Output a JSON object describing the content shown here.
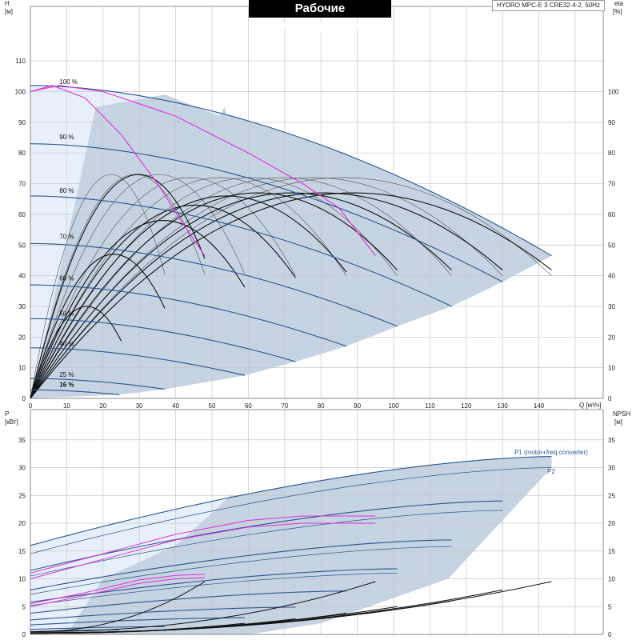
{
  "header": {
    "title": "Рабочие характеристики",
    "model": "HYDRO MPC-E 3 CRE32-4-2, 50Hz"
  },
  "colors": {
    "grid": "#c8c8c8",
    "region_dark": "#c5d3e2",
    "region_light": "#e7f0fa",
    "blue_curve": "#2a5690",
    "magenta_curve": "#e030d8",
    "black_curve": "#111111",
    "thin_curve": "#555555"
  },
  "chart_data": [
    {
      "type": "line",
      "name": "head-chart",
      "ylabel_left": "H",
      "ylabel_left_unit": "[м]",
      "ylabel_right": "eta",
      "ylabel_right_unit": "[%]",
      "xlabel": "Q [м³/ч]",
      "xlim": [
        0,
        150
      ],
      "ylim": [
        0,
        120
      ],
      "xticks": [
        0,
        10,
        20,
        30,
        40,
        50,
        60,
        70,
        80,
        90,
        100,
        110,
        120,
        130,
        140
      ],
      "yticks": [
        0,
        10,
        20,
        30,
        40,
        50,
        60,
        70,
        80,
        90,
        100,
        110
      ],
      "speed_curves": [
        {
          "label": "100 %",
          "qmax": 143.5,
          "h0": 102,
          "hend": 46.5,
          "label_q": 8,
          "label_h": 102
        },
        {
          "label": "90 %",
          "qmax": 130,
          "h0": 83,
          "hend": 38,
          "label_q": 8,
          "label_h": 84
        },
        {
          "label": "80 %",
          "qmax": 116,
          "h0": 66,
          "hend": 30,
          "label_q": 8,
          "label_h": 66.5
        },
        {
          "label": "70 %",
          "qmax": 101,
          "h0": 50.5,
          "hend": 23.5,
          "label_q": 8,
          "label_h": 51.5
        },
        {
          "label": "60 %",
          "qmax": 87,
          "h0": 37,
          "hend": 17,
          "label_q": 8,
          "label_h": 38
        },
        {
          "label": "50 %",
          "qmax": 73,
          "h0": 26,
          "hend": 12,
          "label_q": 8,
          "label_h": 26.5
        },
        {
          "label": "40 %",
          "qmax": 59,
          "h0": 16.5,
          "hend": 7.5,
          "label_q": 8,
          "label_h": 16.5
        },
        {
          "label": "25 %",
          "qmax": 37,
          "h0": 6.5,
          "hend": 3,
          "label_q": 8,
          "label_h": 6.5
        },
        {
          "label": "16 %",
          "qmax": 24.5,
          "h0": 2.8,
          "hend": 1.2,
          "label_q": 8,
          "label_h": 3.2
        }
      ],
      "efficiency_curves_black": [
        {
          "qmax": 25,
          "peak": 30
        },
        {
          "qmax": 37,
          "peak": 47
        },
        {
          "qmax": 48,
          "peak": 73
        },
        {
          "qmax": 59,
          "peak": 58
        },
        {
          "qmax": 73,
          "peak": 63
        },
        {
          "qmax": 87,
          "peak": 66
        },
        {
          "qmax": 101,
          "peak": 67
        },
        {
          "qmax": 116,
          "peak": 67
        },
        {
          "qmax": 130,
          "peak": 67
        },
        {
          "qmax": 143.5,
          "peak": 67
        }
      ],
      "efficiency_curves_thin": [
        {
          "qmax": 37,
          "peak": 73
        },
        {
          "qmax": 48,
          "peak": 73
        },
        {
          "qmax": 59,
          "peak": 73
        },
        {
          "qmax": 73,
          "peak": 72
        },
        {
          "qmax": 87,
          "peak": 72
        },
        {
          "qmax": 101,
          "peak": 72
        },
        {
          "qmax": 116,
          "peak": 72
        },
        {
          "qmax": 130,
          "peak": 72
        },
        {
          "qmax": 143.5,
          "peak": 72
        }
      ],
      "magenta_limit_curves": [
        {
          "points": [
            [
              0,
              100
            ],
            [
              6,
              102
            ],
            [
              15,
              98
            ],
            [
              25,
              86
            ],
            [
              35,
              70
            ],
            [
              42,
              57
            ],
            [
              48,
              46.5
            ]
          ]
        },
        {
          "points": [
            [
              0,
              100
            ],
            [
              8,
              102
            ],
            [
              20,
              100
            ],
            [
              40,
              92
            ],
            [
              60,
              80
            ],
            [
              75,
              70
            ],
            [
              85,
              62
            ],
            [
              95,
              46.5
            ]
          ]
        }
      ]
    },
    {
      "type": "line",
      "name": "power-chart",
      "ylabel_left": "P",
      "ylabel_left_unit": "[кВт]",
      "ylabel_right": "NPSH",
      "ylabel_right_unit": "[м]",
      "xlim": [
        0,
        150
      ],
      "ylim": [
        0,
        37
      ],
      "yticks": [
        0,
        5,
        10,
        15,
        20,
        25,
        30,
        35
      ],
      "series_labels": {
        "p1": "P1 (motor+freq.converter)",
        "p2": "P2"
      },
      "p1_curves": [
        {
          "qmax": 143.5,
          "p0": 16,
          "pend": 32
        },
        {
          "qmax": 130,
          "p0": 11.5,
          "pend": 24
        },
        {
          "qmax": 116,
          "p0": 8,
          "pend": 17
        },
        {
          "qmax": 101,
          "p0": 5.8,
          "pend": 11.8
        },
        {
          "qmax": 87,
          "p0": 3.8,
          "pend": 7.8
        },
        {
          "qmax": 73,
          "p0": 2.6,
          "pend": 4.9
        },
        {
          "qmax": 59,
          "p0": 1.7,
          "pend": 3
        },
        {
          "qmax": 37,
          "p0": 0.9,
          "pend": 1.4
        },
        {
          "qmax": 24.5,
          "p0": 0.5,
          "pend": 0.8
        }
      ],
      "p2_curves": [
        {
          "qmax": 143.5,
          "p0": 14.5,
          "pend": 30
        },
        {
          "qmax": 130,
          "p0": 10.5,
          "pend": 22.3
        },
        {
          "qmax": 116,
          "p0": 7.2,
          "pend": 15.8
        },
        {
          "qmax": 101,
          "p0": 5.2,
          "pend": 11
        }
      ],
      "magenta_power": [
        {
          "points": [
            [
              0,
              11
            ],
            [
              20,
              14.5
            ],
            [
              40,
              18
            ],
            [
              60,
              20.5
            ],
            [
              75,
              21.3
            ],
            [
              95,
              21.3
            ]
          ]
        },
        {
          "points": [
            [
              0,
              10
            ],
            [
              20,
              13.5
            ],
            [
              40,
              17
            ],
            [
              60,
              19.3
            ],
            [
              75,
              20
            ],
            [
              95,
              20
            ]
          ]
        },
        {
          "points": [
            [
              0,
              5.5
            ],
            [
              15,
              7.5
            ],
            [
              30,
              9.8
            ],
            [
              40,
              10.6
            ],
            [
              48,
              10.8
            ]
          ]
        },
        {
          "points": [
            [
              0,
              5
            ],
            [
              15,
              7
            ],
            [
              30,
              9.2
            ],
            [
              40,
              10
            ],
            [
              48,
              10.2
            ]
          ]
        }
      ],
      "npsh_curves": [
        {
          "qmax": 48,
          "h0": 0.5,
          "hend": 9.5
        },
        {
          "qmax": 95,
          "h0": 0.5,
          "hend": 9.5
        },
        {
          "qmax": 101,
          "h0": 0.3,
          "hend": 5
        },
        {
          "qmax": 116,
          "h0": 0.3,
          "hend": 6
        },
        {
          "qmax": 130,
          "h0": 0.3,
          "hend": 8
        },
        {
          "qmax": 143.5,
          "h0": 0.3,
          "hend": 9.5
        },
        {
          "qmax": 87,
          "h0": 0.2,
          "hend": 3.8
        },
        {
          "qmax": 73,
          "h0": 0.2,
          "hend": 2.8
        },
        {
          "qmax": 59,
          "h0": 0.2,
          "hend": 2
        }
      ]
    }
  ]
}
